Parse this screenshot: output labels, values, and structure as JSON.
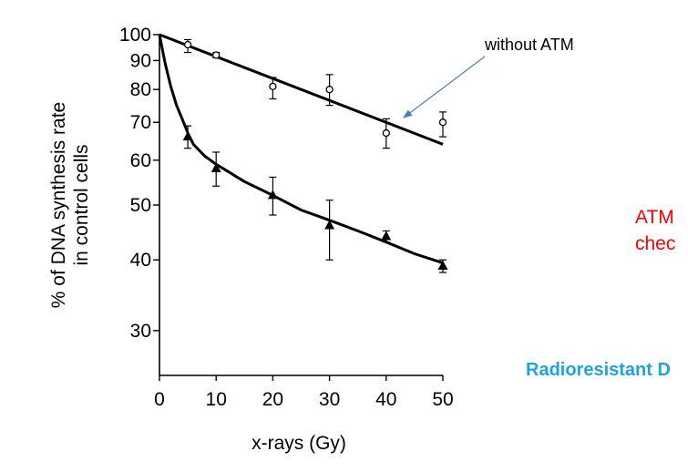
{
  "chart_data": {
    "type": "scatter",
    "xlabel": "x-rays (Gy)",
    "ylabel_line1": "% of DNA synthesis rate",
    "ylabel_line2": "in control cells",
    "y_scale": "log",
    "xlim": [
      0,
      50
    ],
    "ylim": [
      25,
      100
    ],
    "x_ticks": [
      0,
      10,
      20,
      30,
      40,
      50
    ],
    "y_ticks": [
      30,
      40,
      50,
      60,
      70,
      80,
      90,
      100
    ],
    "grid": false,
    "series": [
      {
        "name": "without ATM",
        "marker": "open-circle",
        "x": [
          5,
          10,
          20,
          30,
          40,
          50
        ],
        "y": [
          96,
          92,
          81,
          80,
          67,
          70
        ],
        "err_low": [
          93,
          91,
          77,
          75,
          63,
          66
        ],
        "err_high": [
          98,
          93,
          84,
          85,
          71,
          73
        ],
        "fit": {
          "x": [
            0,
            50
          ],
          "y": [
            100,
            64
          ]
        }
      },
      {
        "name": "",
        "marker": "filled-triangle",
        "x": [
          5,
          10,
          20,
          30,
          40,
          50
        ],
        "y": [
          66,
          58,
          52,
          46,
          44,
          39
        ],
        "err_low": [
          63,
          54,
          48,
          40,
          43,
          38
        ],
        "err_high": [
          69,
          62,
          56,
          51,
          45,
          40
        ],
        "fit_curve": {
          "x": [
            0,
            1,
            2,
            3,
            4,
            5,
            6,
            8,
            10,
            15,
            20,
            25,
            30,
            35,
            40,
            45,
            50
          ],
          "y": [
            100,
            89,
            81,
            75,
            71,
            67,
            64,
            61,
            59,
            55,
            52,
            49,
            47,
            45,
            43,
            41,
            39.5
          ]
        }
      }
    ],
    "annotation": "without ATM"
  },
  "side_text": {
    "red_line1": "ATM",
    "red_line2": "chec",
    "blue_line": "Radioresistant D"
  }
}
